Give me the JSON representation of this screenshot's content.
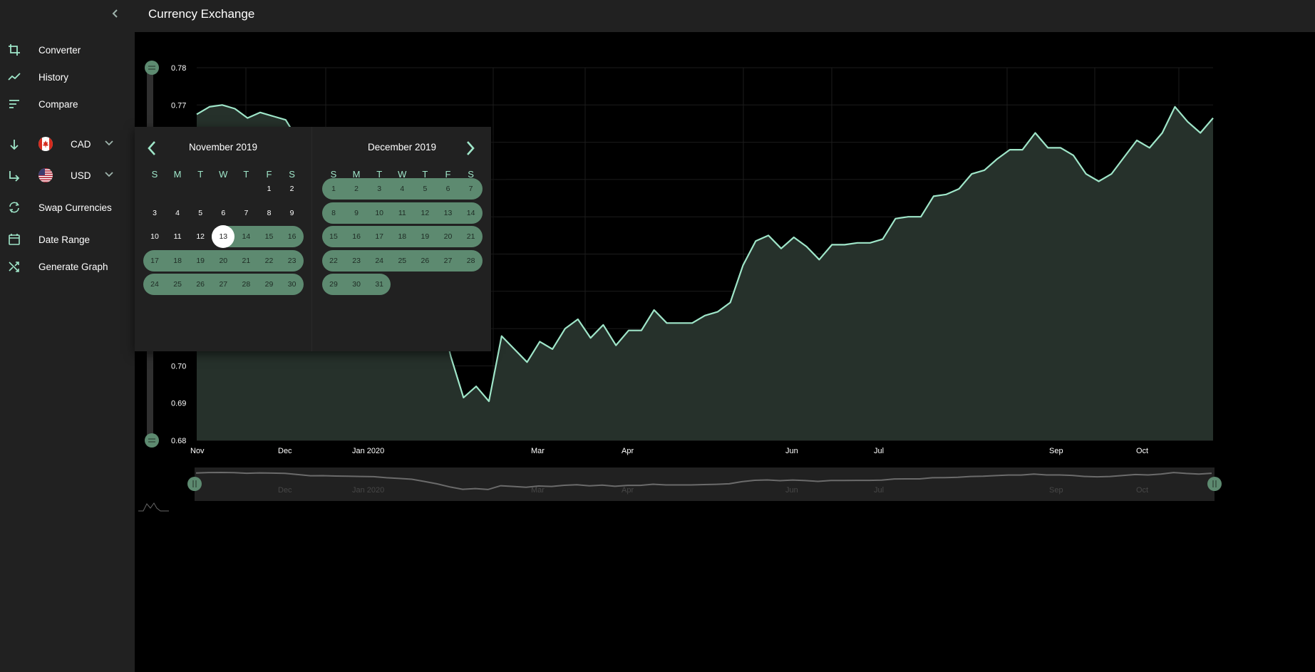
{
  "app": {
    "title": "Currency Exchange"
  },
  "sidebar": {
    "items": [
      {
        "label": "Converter",
        "icon": "crop-icon"
      },
      {
        "label": "History",
        "icon": "trending-icon"
      },
      {
        "label": "Compare",
        "icon": "sort-icon"
      }
    ],
    "from_currency": {
      "code": "CAD",
      "icon": "arrow-down-icon",
      "flag": "canada-flag-icon"
    },
    "to_currency": {
      "code": "USD",
      "icon": "subdirectory-arrow-icon",
      "flag": "us-flag-icon"
    },
    "actions": [
      {
        "label": "Swap Currencies",
        "icon": "swap-icon"
      },
      {
        "label": "Date Range",
        "icon": "calendar-icon"
      },
      {
        "label": "Generate Graph",
        "icon": "shuffle-icon"
      }
    ]
  },
  "date_picker": {
    "left_month": "November 2019",
    "right_month": "December 2019",
    "weekdays": [
      "S",
      "M",
      "T",
      "W",
      "T",
      "F",
      "S"
    ],
    "selected_start": "13",
    "nov_days": [
      "1",
      "2",
      "3",
      "4",
      "5",
      "6",
      "7",
      "8",
      "9",
      "10",
      "11",
      "12",
      "13",
      "14",
      "15",
      "16",
      "17",
      "18",
      "19",
      "20",
      "21",
      "22",
      "23",
      "24",
      "25",
      "26",
      "27",
      "28",
      "29",
      "30"
    ],
    "dec_days": [
      "1",
      "2",
      "3",
      "4",
      "5",
      "6",
      "7",
      "8",
      "9",
      "10",
      "11",
      "12",
      "13",
      "14",
      "15",
      "16",
      "17",
      "18",
      "19",
      "20",
      "21",
      "22",
      "23",
      "24",
      "25",
      "26",
      "27",
      "28",
      "29",
      "30",
      "31"
    ]
  },
  "chart_data": {
    "type": "area",
    "y_ticks": [
      "0.78",
      "0.77",
      "0.70",
      "0.69",
      "0.68"
    ],
    "x_ticks": [
      "Nov",
      "Dec",
      "Jan 2020",
      "Mar",
      "Apr",
      "Jun",
      "Jul",
      "Sep",
      "Oct"
    ],
    "navigator_labels": [
      "Dec",
      "Jan 2020",
      "Mar",
      "Apr",
      "Jun",
      "Jul",
      "Sep",
      "Oct"
    ],
    "ylim": [
      0.68,
      0.78
    ],
    "series": [
      {
        "values": [
          0.7675,
          0.7695,
          0.77,
          0.769,
          0.7665,
          0.768,
          0.767,
          0.766,
          0.7605,
          0.7545,
          0.755,
          0.7535,
          0.7525,
          0.7515,
          0.7505,
          0.7455,
          0.742,
          0.7385,
          0.728,
          0.7165,
          0.7025,
          0.6915,
          0.6945,
          0.6905,
          0.708,
          0.7045,
          0.701,
          0.7065,
          0.7045,
          0.71,
          0.7125,
          0.7075,
          0.711,
          0.7055,
          0.7095,
          0.7095,
          0.715,
          0.7115,
          0.7115,
          0.7115,
          0.7135,
          0.7145,
          0.717,
          0.727,
          0.7335,
          0.735,
          0.7315,
          0.7345,
          0.732,
          0.7285,
          0.7325,
          0.7325,
          0.733,
          0.733,
          0.734,
          0.7395,
          0.74,
          0.74,
          0.7455,
          0.746,
          0.7475,
          0.7515,
          0.7525,
          0.7555,
          0.758,
          0.758,
          0.7625,
          0.7585,
          0.7585,
          0.7565,
          0.7515,
          0.7495,
          0.7515,
          0.756,
          0.7605,
          0.7585,
          0.7625,
          0.7695,
          0.7655,
          0.7625,
          0.7665
        ]
      }
    ]
  },
  "colors": {
    "accent": "#9fe6c9",
    "range": "#5d8a70",
    "panel": "#212121"
  }
}
